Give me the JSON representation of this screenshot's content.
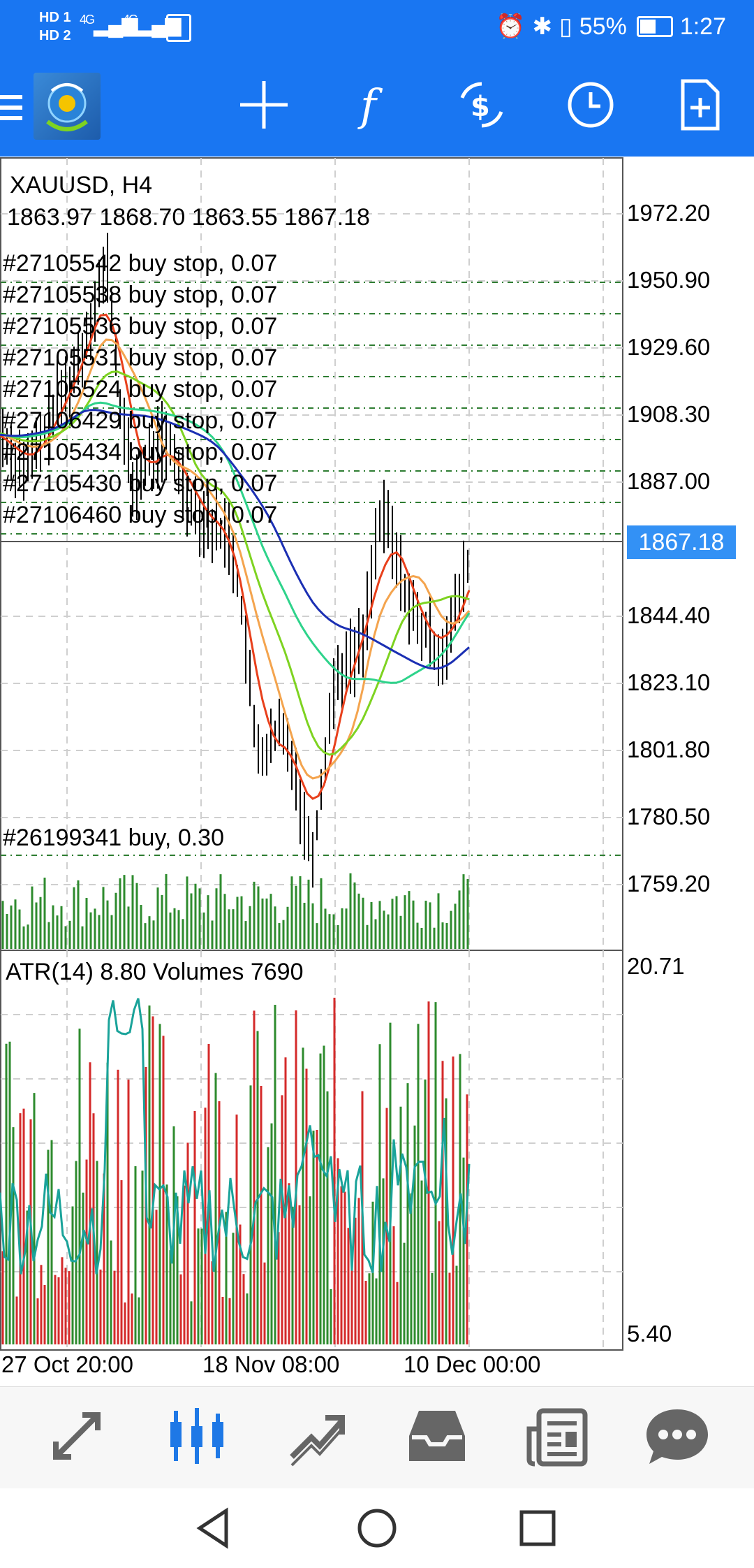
{
  "status_bar": {
    "hd1": "HD 1",
    "hd2": "HD 2",
    "net1": "4G",
    "net2": "4G",
    "battery": "55%",
    "time": "1:27"
  },
  "toolbar": {
    "icons": [
      "menu-icon",
      "mt4-logo",
      "crosshair-icon",
      "function-icon",
      "trade-icon",
      "timeframe-icon",
      "new-order-icon"
    ]
  },
  "chart": {
    "symbol": "XAUUSD, H4",
    "ohlc": "1863.97 1868.70 1863.55 1867.18",
    "current_price": "1867.18",
    "price_levels": [
      "1972.20",
      "1950.90",
      "1929.60",
      "1908.30",
      "1887.00",
      "1844.40",
      "1823.10",
      "1801.80",
      "1780.50",
      "1759.20"
    ],
    "orders": [
      "#27105542 buy stop, 0.07",
      "#27105538 buy stop, 0.07",
      "#27105536 buy stop, 0.07",
      "#27105531 buy stop, 0.07",
      "#27105524 buy stop, 0.07",
      "#27106429 buy stop, 0.07",
      "#27105434 buy stop, 0.07",
      "#27105430 buy stop, 0.07",
      "#27106460 buy stop, 0.07"
    ],
    "position": "#26199341 buy, 0.30",
    "indicator": "ATR(14) 8.80 Volumes 7690",
    "indicator_max": "20.71",
    "indicator_min": "5.40",
    "time_labels": [
      "27 Oct 20:00",
      "18 Nov 08:00",
      "10 Dec 00:00"
    ]
  },
  "colors": {
    "header": "#1976f2",
    "bull_candle": "#000000",
    "volume_green": "#2e8b2e",
    "volume_red": "#d42a2a",
    "ma_red": "#e8401c",
    "ma_orange": "#f4a44e",
    "ma_lightgreen": "#7ed321",
    "ma_teal": "#2ed38b",
    "ma_blue": "#1b2fb3",
    "atr": "#1aa39a",
    "current_price_bg": "#3391f5"
  },
  "bottom_nav": {
    "items": [
      "quotes-icon",
      "chart-icon",
      "trade-icon",
      "history-icon",
      "news-icon",
      "messages-icon"
    ],
    "active": "chart-icon"
  }
}
